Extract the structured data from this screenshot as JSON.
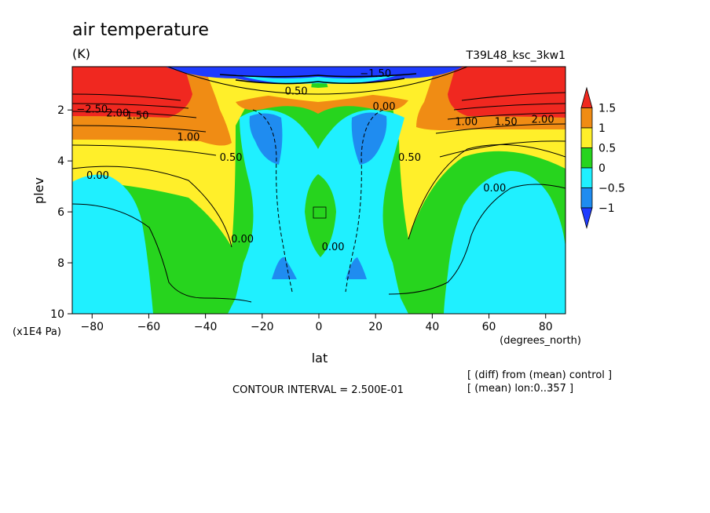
{
  "title": "air temperature",
  "units": "(K)",
  "experiment": "T39L48_ksc_3kw1",
  "footer": {
    "contour_interval": "CONTOUR INTERVAL = 2.500E-01",
    "diff_note": "[ (diff) from (mean) control ]",
    "mean_note": "[ (mean) lon:0..357 ]"
  },
  "chart_data": {
    "type": "contour",
    "title": "air temperature",
    "units": "(K)",
    "xlabel": "lat",
    "xunits": "(degrees_north)",
    "ylabel": "plev",
    "yunits": "(x1E4 Pa)",
    "xlim": [
      -87,
      87
    ],
    "ylim": [
      0.3,
      10
    ],
    "y_inverted": true,
    "xticks": [
      -80,
      -60,
      -40,
      -20,
      0,
      20,
      40,
      60,
      80
    ],
    "xtick_labels": [
      "−80",
      "−60",
      "−40",
      "−20",
      "0",
      "20",
      "40",
      "60",
      "80"
    ],
    "yticks": [
      2,
      4,
      6,
      8,
      10
    ],
    "ytick_labels": [
      "2",
      "4",
      "6",
      "8",
      "10"
    ],
    "contour_interval": 0.25,
    "colorbar": {
      "levels": [
        1.5,
        1,
        0.5,
        0,
        -0.5,
        -1
      ],
      "labels": [
        "1.5",
        "1",
        "0.5",
        "0",
        "−0.5",
        "−1"
      ],
      "colors": [
        "#f0281e",
        "#f08c14",
        "#ffef2a",
        "#27d41e",
        "#1ff0ff",
        "#1f8cf0",
        "#1e3cff"
      ]
    },
    "contour_labels": [
      {
        "text": "−2.50",
        "lat": -80,
        "plev": 2.1
      },
      {
        "text": "2.00",
        "lat": -71,
        "plev": 2.25
      },
      {
        "text": "1.50",
        "lat": -64,
        "plev": 2.35
      },
      {
        "text": "1.00",
        "lat": -46,
        "plev": 3.2
      },
      {
        "text": "0.50",
        "lat": -31,
        "plev": 4.0
      },
      {
        "text": "0.00",
        "lat": -78,
        "plev": 4.7
      },
      {
        "text": "0.00",
        "lat": -27,
        "plev": 7.2
      },
      {
        "text": "0.00",
        "lat": 5,
        "plev": 7.5
      },
      {
        "text": "0.00",
        "lat": 23,
        "plev": 2.0
      },
      {
        "text": "0.50",
        "lat": 32,
        "plev": 4.0
      },
      {
        "text": "1.00",
        "lat": 52,
        "plev": 2.6
      },
      {
        "text": "1.50",
        "lat": 66,
        "plev": 2.6
      },
      {
        "text": "2.00",
        "lat": 79,
        "plev": 2.5
      },
      {
        "text": "0.00",
        "lat": 62,
        "plev": 5.2
      },
      {
        "text": "0.50",
        "lat": -8,
        "plev": 1.4
      },
      {
        "text": "−1.50",
        "lat": 20,
        "plev": 0.7
      }
    ]
  }
}
